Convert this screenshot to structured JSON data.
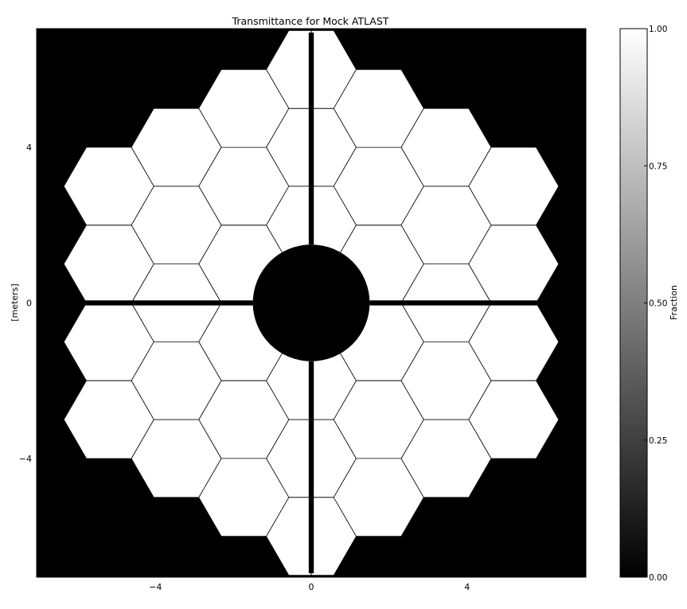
{
  "chart_data": {
    "type": "heatmap",
    "title": "Transmittance for Mock ATLAST",
    "xlabel": "",
    "ylabel": "[meters]",
    "xlim": [
      -7.05,
      7.05
    ],
    "ylim": [
      -7.05,
      7.05
    ],
    "x_ticks": [
      -4,
      0,
      4
    ],
    "y_ticks": [
      -4,
      0,
      4
    ],
    "x_tick_labels": [
      "−4",
      "0",
      "4"
    ],
    "y_tick_labels": [
      "4",
      "0",
      "−4"
    ],
    "grid": false,
    "colormap": "gray",
    "background_value": 0.0,
    "aperture": {
      "segment_shape": "hexagon",
      "segment_value": 1.0,
      "segment_flat_to_flat_m": 2.0,
      "segment_vertex_radius_m": 1.155,
      "rings": 3,
      "segment_centers_m": [
        [
          0,
          2
        ],
        [
          0,
          4
        ],
        [
          0,
          6
        ],
        [
          0,
          -2
        ],
        [
          0,
          -4
        ],
        [
          0,
          -6
        ],
        [
          1.732,
          1
        ],
        [
          1.732,
          3
        ],
        [
          1.732,
          5
        ],
        [
          1.732,
          -1
        ],
        [
          1.732,
          -3
        ],
        [
          1.732,
          -5
        ],
        [
          -1.732,
          1
        ],
        [
          -1.732,
          3
        ],
        [
          -1.732,
          5
        ],
        [
          -1.732,
          -1
        ],
        [
          -1.732,
          -3
        ],
        [
          -1.732,
          -5
        ],
        [
          3.464,
          0
        ],
        [
          3.464,
          2
        ],
        [
          3.464,
          4
        ],
        [
          3.464,
          -2
        ],
        [
          3.464,
          -4
        ],
        [
          -3.464,
          0
        ],
        [
          -3.464,
          2
        ],
        [
          -3.464,
          4
        ],
        [
          -3.464,
          -2
        ],
        [
          -3.464,
          -4
        ],
        [
          5.196,
          1
        ],
        [
          5.196,
          3
        ],
        [
          5.196,
          -1
        ],
        [
          5.196,
          -3
        ],
        [
          -5.196,
          1
        ],
        [
          -5.196,
          3
        ],
        [
          -5.196,
          -1
        ],
        [
          -5.196,
          -3
        ]
      ],
      "central_obscuration_radius_m": 1.5,
      "support_struts": 4,
      "strut_width_m": 0.13
    },
    "colorbar": {
      "label": "Fraction",
      "range": [
        0.0,
        1.0
      ],
      "ticks": [
        0.0,
        0.25,
        0.5,
        0.75,
        1.0
      ],
      "tick_labels": [
        "0.00",
        "0.25",
        "0.50",
        "0.75",
        "1.00"
      ]
    }
  }
}
